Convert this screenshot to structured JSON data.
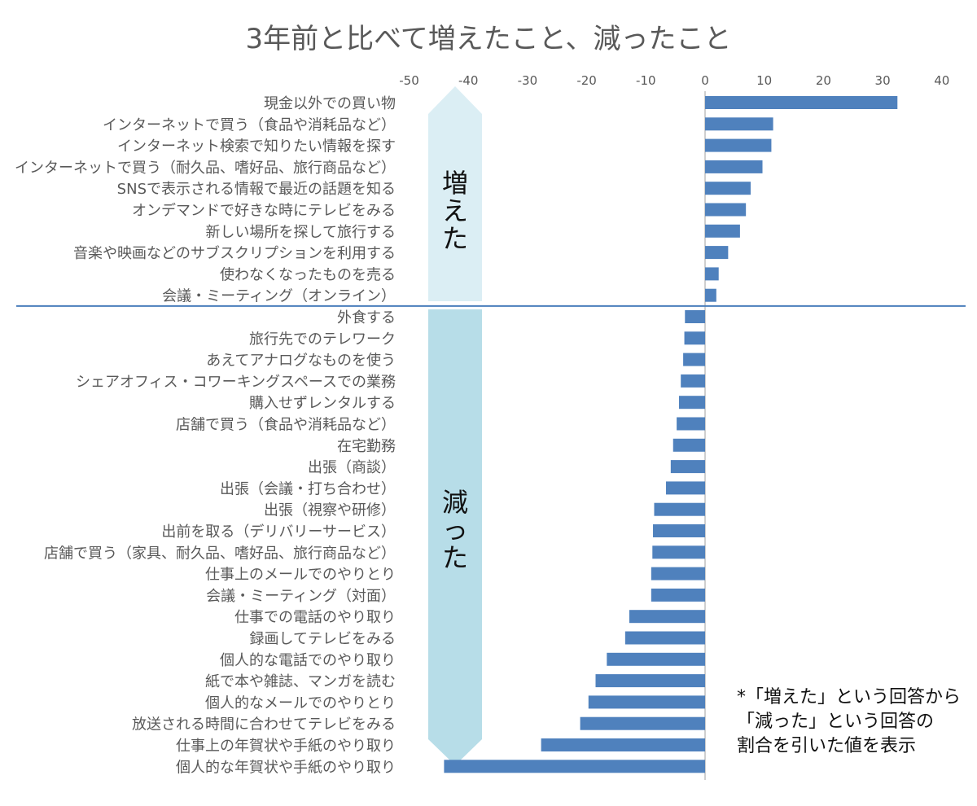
{
  "chart_data": {
    "type": "bar",
    "orientation": "horizontal",
    "title": "3年前と比べて増えたこと、減ったこと",
    "xlim": [
      -50,
      40
    ],
    "xticks": [
      -50,
      -40,
      -30,
      -20,
      -10,
      0,
      10,
      20,
      30,
      40
    ],
    "xlabel": "",
    "ylabel": "",
    "bar_color": "#4f81bd",
    "groups": [
      {
        "label": "増えた",
        "color": "#dbeef4"
      },
      {
        "label": "減った",
        "color": "#b7dde8"
      }
    ],
    "categories": [
      "現金以外での買い物",
      "インターネットで買う（食品や消耗品など）",
      "インターネット検索で知りたい情報を探す",
      "インターネットで買う（耐久品、嗜好品、旅行商品など）",
      "SNSで表示される情報で最近の話題を知る",
      "オンデマンドで好きな時にテレビをみる",
      "新しい場所を探して旅行する",
      "音楽や映画などのサブスクリプションを利用する",
      "使わなくなったものを売る",
      "会議・ミーティング（オンライン）",
      "外食する",
      "旅行先でのテレワーク",
      "あえてアナログなものを使う",
      "シェアオフィス・コワーキングスペースでの業務",
      "購入せずレンタルする",
      "店舗で買う（食品や消耗品など）",
      "在宅勤務",
      "出張（商談）",
      "出張（会議・打ち合わせ）",
      "出張（視察や研修）",
      "出前を取る（デリバリーサービス）",
      "店舗で買う（家具、耐久品、嗜好品、旅行商品など）",
      "仕事上のメールでのやりとり",
      "会議・ミーティング（対面）",
      "仕事での電話のやり取り",
      "録画してテレビをみる",
      "個人的な電話でのやり取り",
      "紙で本や雑誌、マンガを読む",
      "個人的なメールでのやりとり",
      "放送される時間に合わせてテレビをみる",
      "仕事上の年賀状や手紙のやり取り",
      "個人的な年賀状や手紙のやり取り"
    ],
    "values": [
      32.5,
      11.5,
      11.2,
      9.7,
      7.7,
      6.9,
      5.9,
      3.9,
      2.3,
      1.9,
      -3.4,
      -3.5,
      -3.7,
      -4.1,
      -4.4,
      -4.8,
      -5.4,
      -5.8,
      -6.6,
      -8.6,
      -8.8,
      -8.9,
      -9.1,
      -9.1,
      -12.8,
      -13.5,
      -16.6,
      -18.5,
      -19.7,
      -21.1,
      -27.7,
      -44.1
    ]
  },
  "note": {
    "lines": [
      "*「増えた」という回答から",
      "「減った」という回答の",
      "割合を引いた値を表示"
    ]
  }
}
